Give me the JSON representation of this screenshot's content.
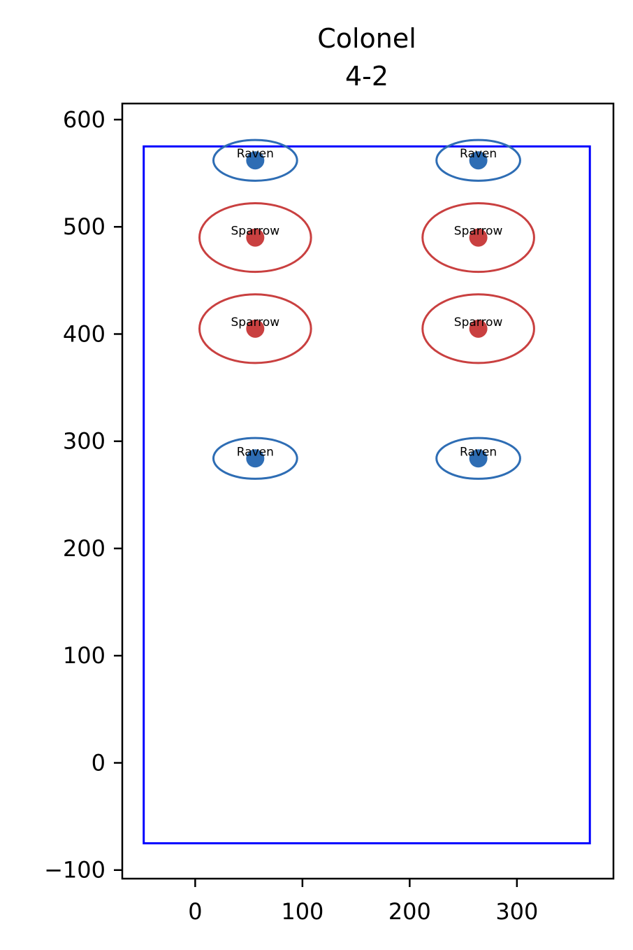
{
  "chart_data": {
    "type": "scatter",
    "title": [
      "Colonel",
      "4-2"
    ],
    "xlim": [
      -68,
      390
    ],
    "ylim": [
      -108,
      615
    ],
    "xticks": [
      0,
      100,
      200,
      300
    ],
    "yticks": [
      -100,
      0,
      100,
      200,
      300,
      400,
      500,
      600
    ],
    "xtick_labels": [
      "0",
      "100",
      "200",
      "300"
    ],
    "ytick_labels": [
      "−100",
      "0",
      "100",
      "200",
      "300",
      "400",
      "500",
      "600"
    ],
    "boundary": {
      "x0": -48,
      "y0": -75,
      "x1": 368,
      "y1": 575,
      "color": "#0000ff"
    },
    "colors": {
      "Raven": "#2e6db4",
      "Sparrow": "#c94040"
    },
    "points": [
      {
        "label": "Raven",
        "x": 56,
        "y": 562,
        "rx": 39,
        "ry": 19
      },
      {
        "label": "Raven",
        "x": 264,
        "y": 562,
        "rx": 39,
        "ry": 19
      },
      {
        "label": "Sparrow",
        "x": 56,
        "y": 490,
        "rx": 52,
        "ry": 32
      },
      {
        "label": "Sparrow",
        "x": 264,
        "y": 490,
        "rx": 52,
        "ry": 32
      },
      {
        "label": "Sparrow",
        "x": 56,
        "y": 405,
        "rx": 52,
        "ry": 32
      },
      {
        "label": "Sparrow",
        "x": 264,
        "y": 405,
        "rx": 52,
        "ry": 32
      },
      {
        "label": "Raven",
        "x": 56,
        "y": 284,
        "rx": 39,
        "ry": 19
      },
      {
        "label": "Raven",
        "x": 264,
        "y": 284,
        "rx": 39,
        "ry": 19
      }
    ]
  }
}
